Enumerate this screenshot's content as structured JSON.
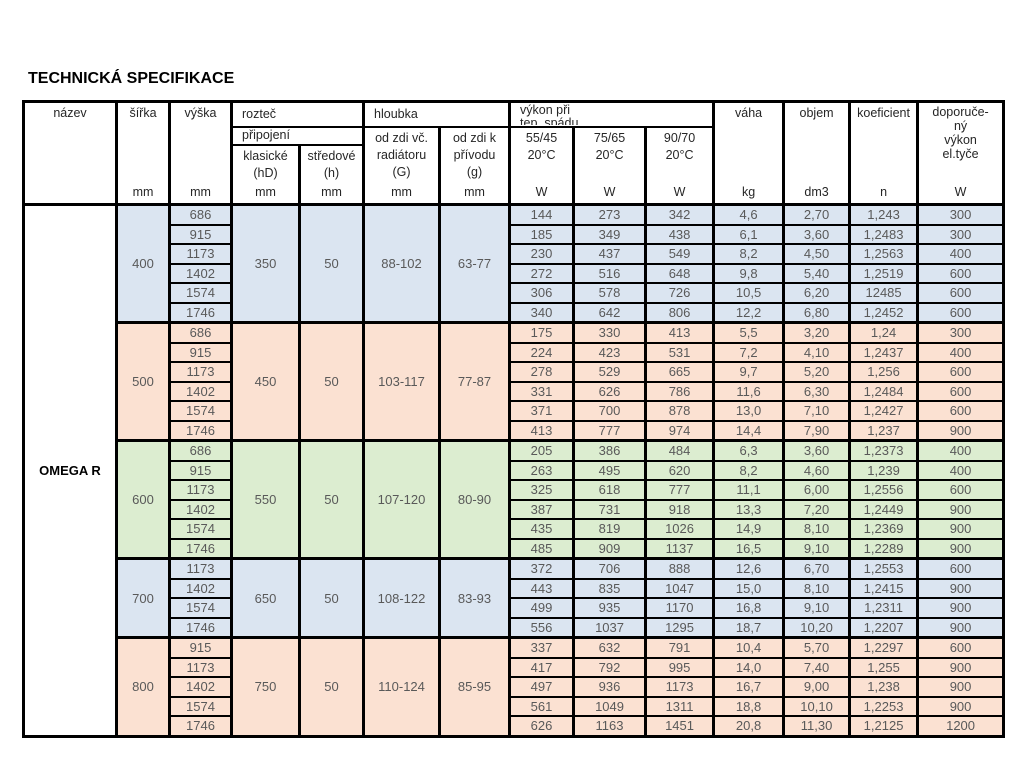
{
  "title": "TECHNICKÁ SPECIFIKACE",
  "product": "OMEGA R",
  "header": {
    "nazev": "název",
    "sirka": "šířka",
    "vyska": "výška",
    "roztec": "rozteč",
    "pripojeni": "připojení",
    "klasicke_l1": "klasické",
    "klasicke_l2": "(hD)",
    "stredove_l1": "středové",
    "stredove_l2": "(h)",
    "hloubka": "hloubka",
    "od_zdi_vc_l1": "od zdi vč.",
    "od_zdi_vc_l2": "radiátoru",
    "od_zdi_vc_l3": "(G)",
    "od_zdi_k_l1": "od zdi k",
    "od_zdi_k_l2": "přívodu",
    "od_zdi_k_l3": "(g)",
    "vykon_l1": "výkon při",
    "vykon_l2": "tep. spádu",
    "temp_55": "55/45",
    "temp_75": "75/65",
    "temp_90": "90/70",
    "temp_deg": "20°C",
    "vaha": "váha",
    "objem": "objem",
    "koeficient": "koeficient",
    "doporuceny_l1": "doporuče-",
    "doporuceny_l2": "ný",
    "doporuceny_l3": "výkon",
    "doporuceny_l4": "el.tyče",
    "unit_mm": "mm",
    "unit_w": "W",
    "unit_kg": "kg",
    "unit_dm3": "dm3",
    "unit_n": "n"
  },
  "colors": {
    "blue": "#dbe5f1",
    "peach": "#fbe1d2",
    "green": "#dcedd0"
  },
  "groups": [
    {
      "width": "400",
      "klasicke": "350",
      "stredove": "50",
      "G": "88-102",
      "g": "63-77",
      "color": "blue",
      "rows": [
        [
          "686",
          "144",
          "273",
          "342",
          "4,6",
          "2,70",
          "1,243",
          "300"
        ],
        [
          "915",
          "185",
          "349",
          "438",
          "6,1",
          "3,60",
          "1,2483",
          "300"
        ],
        [
          "1173",
          "230",
          "437",
          "549",
          "8,2",
          "4,50",
          "1,2563",
          "400"
        ],
        [
          "1402",
          "272",
          "516",
          "648",
          "9,8",
          "5,40",
          "1,2519",
          "600"
        ],
        [
          "1574",
          "306",
          "578",
          "726",
          "10,5",
          "6,20",
          "12485",
          "600"
        ],
        [
          "1746",
          "340",
          "642",
          "806",
          "12,2",
          "6,80",
          "1,2452",
          "600"
        ]
      ]
    },
    {
      "width": "500",
      "klasicke": "450",
      "stredove": "50",
      "G": "103-117",
      "g": "77-87",
      "color": "peach",
      "rows": [
        [
          "686",
          "175",
          "330",
          "413",
          "5,5",
          "3,20",
          "1,24",
          "300"
        ],
        [
          "915",
          "224",
          "423",
          "531",
          "7,2",
          "4,10",
          "1,2437",
          "400"
        ],
        [
          "1173",
          "278",
          "529",
          "665",
          "9,7",
          "5,20",
          "1,256",
          "600"
        ],
        [
          "1402",
          "331",
          "626",
          "786",
          "11,6",
          "6,30",
          "1,2484",
          "600"
        ],
        [
          "1574",
          "371",
          "700",
          "878",
          "13,0",
          "7,10",
          "1,2427",
          "600"
        ],
        [
          "1746",
          "413",
          "777",
          "974",
          "14,4",
          "7,90",
          "1,237",
          "900"
        ]
      ]
    },
    {
      "width": "600",
      "klasicke": "550",
      "stredove": "50",
      "G": "107-120",
      "g": "80-90",
      "color": "green",
      "rows": [
        [
          "686",
          "205",
          "386",
          "484",
          "6,3",
          "3,60",
          "1,2373",
          "400"
        ],
        [
          "915",
          "263",
          "495",
          "620",
          "8,2",
          "4,60",
          "1,239",
          "400"
        ],
        [
          "1173",
          "325",
          "618",
          "777",
          "11,1",
          "6,00",
          "1,2556",
          "600"
        ],
        [
          "1402",
          "387",
          "731",
          "918",
          "13,3",
          "7,20",
          "1,2449",
          "900"
        ],
        [
          "1574",
          "435",
          "819",
          "1026",
          "14,9",
          "8,10",
          "1,2369",
          "900"
        ],
        [
          "1746",
          "485",
          "909",
          "1137",
          "16,5",
          "9,10",
          "1,2289",
          "900"
        ]
      ]
    },
    {
      "width": "700",
      "klasicke": "650",
      "stredove": "50",
      "G": "108-122",
      "g": "83-93",
      "color": "blue",
      "rows": [
        [
          "1173",
          "372",
          "706",
          "888",
          "12,6",
          "6,70",
          "1,2553",
          "600"
        ],
        [
          "1402",
          "443",
          "835",
          "1047",
          "15,0",
          "8,10",
          "1,2415",
          "900"
        ],
        [
          "1574",
          "499",
          "935",
          "1170",
          "16,8",
          "9,10",
          "1,2311",
          "900"
        ],
        [
          "1746",
          "556",
          "1037",
          "1295",
          "18,7",
          "10,20",
          "1,2207",
          "900"
        ]
      ]
    },
    {
      "width": "800",
      "klasicke": "750",
      "stredove": "50",
      "G": "110-124",
      "g": "85-95",
      "color": "peach",
      "rows": [
        [
          "915",
          "337",
          "632",
          "791",
          "10,4",
          "5,70",
          "1,2297",
          "600"
        ],
        [
          "1173",
          "417",
          "792",
          "995",
          "14,0",
          "7,40",
          "1,255",
          "900"
        ],
        [
          "1402",
          "497",
          "936",
          "1173",
          "16,7",
          "9,00",
          "1,238",
          "900"
        ],
        [
          "1574",
          "561",
          "1049",
          "1311",
          "18,8",
          "10,10",
          "1,2253",
          "900"
        ],
        [
          "1746",
          "626",
          "1163",
          "1451",
          "20,8",
          "11,30",
          "1,2125",
          "1200"
        ]
      ]
    }
  ]
}
